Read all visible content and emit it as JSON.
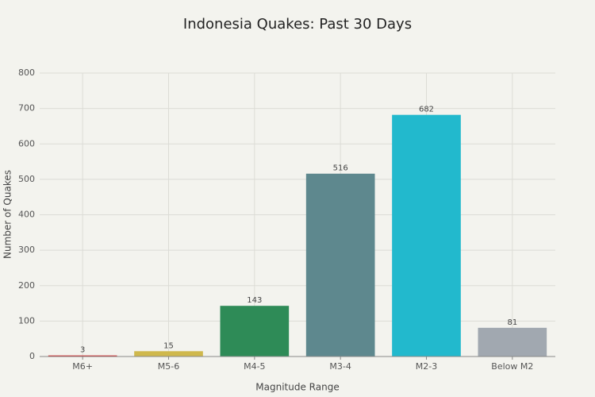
{
  "chart_data": {
    "type": "bar",
    "title": "Indonesia Quakes: Past 30 Days",
    "x_label": "Magnitude Range",
    "y_label": "Number of Quakes",
    "categories": [
      "M6+",
      "M5-6",
      "M4-5",
      "M3-4",
      "M2-3",
      "Below M2"
    ],
    "values": [
      3,
      15,
      143,
      516,
      682,
      81
    ],
    "colors": [
      "#d42a2a",
      "#cfb84c",
      "#2e8b57",
      "#5e888e",
      "#22b9cd",
      "#a1a8b0"
    ],
    "ylim": [
      0,
      800
    ],
    "yticks": [
      0,
      100,
      200,
      300,
      400,
      500,
      600,
      700,
      800
    ],
    "grid": true
  }
}
